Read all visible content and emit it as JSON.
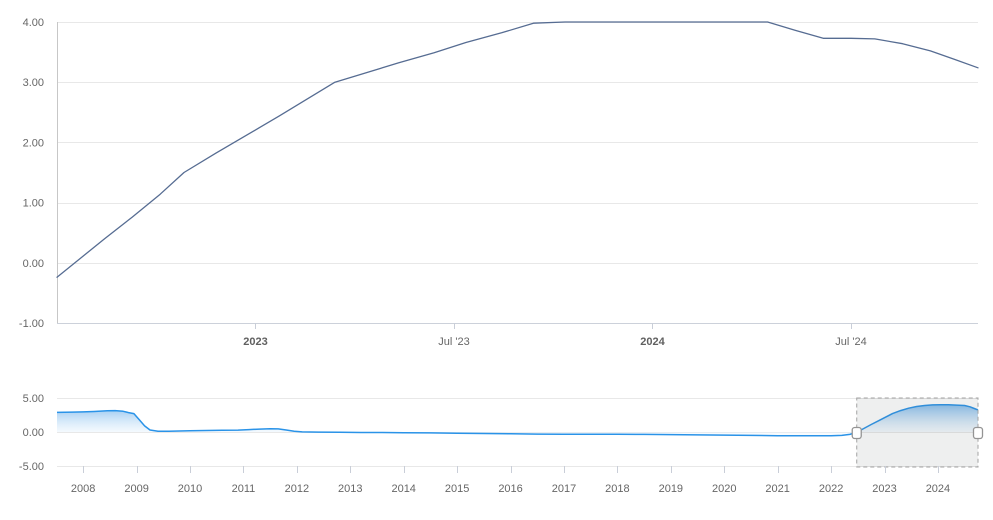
{
  "page": {
    "background": "#ffffff",
    "title": ""
  },
  "colors": {
    "grid": "#e8e8e8",
    "axis_line": "#ccd1da",
    "y_axis_line": "#c7c7c7",
    "tick_mark": "#c9ced8",
    "label": "#666666",
    "main_line": "#566c92",
    "nav_line": "#2a93e8",
    "nav_fill_top": "#7db9ed",
    "nav_fill_bottom": "#f3f9fe",
    "selection_fill": "rgba(100,105,112,0.11)",
    "selection_border": "#a3a3a3",
    "handle_fill": "#ffffff",
    "handle_border": "#949494"
  },
  "chart_data": [
    {
      "type": "line",
      "role": "main-zoomed-series",
      "title": "",
      "xlabel": "",
      "ylabel": "",
      "legend": "none",
      "grid": "horizontal-only",
      "xlim": [
        2022.5,
        2024.82
      ],
      "ylim": [
        -1,
        4
      ],
      "y_ticks": [
        {
          "v": 4,
          "label": "4.00"
        },
        {
          "v": 3,
          "label": "3.00"
        },
        {
          "v": 2,
          "label": "2.00"
        },
        {
          "v": 1,
          "label": "1.00"
        },
        {
          "v": 0,
          "label": "0.00"
        },
        {
          "v": -1,
          "label": "-1.00"
        }
      ],
      "x_ticks": [
        {
          "v": 2023.0,
          "label": "2023",
          "bold": true
        },
        {
          "v": 2023.5,
          "label": "Jul '23",
          "bold": false
        },
        {
          "v": 2024.0,
          "label": "2024",
          "bold": true
        },
        {
          "v": 2024.5,
          "label": "Jul '24",
          "bold": false
        }
      ],
      "points": [
        [
          2022.5,
          -0.24
        ],
        [
          2022.56,
          0.08
        ],
        [
          2022.62,
          0.4
        ],
        [
          2022.69,
          0.76
        ],
        [
          2022.76,
          1.14
        ],
        [
          2022.82,
          1.5
        ],
        [
          2022.9,
          1.82
        ],
        [
          2022.98,
          2.13
        ],
        [
          2023.06,
          2.44
        ],
        [
          2023.13,
          2.72
        ],
        [
          2023.2,
          3.0
        ],
        [
          2023.28,
          3.16
        ],
        [
          2023.36,
          3.32
        ],
        [
          2023.45,
          3.49
        ],
        [
          2023.53,
          3.66
        ],
        [
          2023.62,
          3.82
        ],
        [
          2023.7,
          3.98
        ],
        [
          2023.78,
          4.0
        ],
        [
          2023.87,
          4.0
        ],
        [
          2023.95,
          4.0
        ],
        [
          2024.04,
          4.0
        ],
        [
          2024.12,
          4.0
        ],
        [
          2024.21,
          4.0
        ],
        [
          2024.29,
          4.0
        ],
        [
          2024.36,
          3.86
        ],
        [
          2024.43,
          3.73
        ],
        [
          2024.5,
          3.73
        ],
        [
          2024.56,
          3.72
        ],
        [
          2024.63,
          3.64
        ],
        [
          2024.7,
          3.52
        ],
        [
          2024.76,
          3.38
        ],
        [
          2024.82,
          3.24
        ]
      ]
    },
    {
      "type": "area",
      "role": "navigator-series",
      "title": "",
      "xlabel": "",
      "ylabel": "",
      "legend": "none",
      "grid": "horizontal-only",
      "xlim": [
        2007.51,
        2024.75
      ],
      "ylim": [
        -5,
        5
      ],
      "y_ticks": [
        {
          "v": 5,
          "label": "5.00"
        },
        {
          "v": 0,
          "label": "0.00"
        },
        {
          "v": -5,
          "label": "-5.00"
        }
      ],
      "x_ticks": [
        {
          "v": 2008,
          "label": "2008"
        },
        {
          "v": 2009,
          "label": "2009"
        },
        {
          "v": 2010,
          "label": "2010"
        },
        {
          "v": 2011,
          "label": "2011"
        },
        {
          "v": 2012,
          "label": "2012"
        },
        {
          "v": 2013,
          "label": "2013"
        },
        {
          "v": 2014,
          "label": "2014"
        },
        {
          "v": 2015,
          "label": "2015"
        },
        {
          "v": 2016,
          "label": "2016"
        },
        {
          "v": 2017,
          "label": "2017"
        },
        {
          "v": 2018,
          "label": "2018"
        },
        {
          "v": 2019,
          "label": "2019"
        },
        {
          "v": 2020,
          "label": "2020"
        },
        {
          "v": 2021,
          "label": "2021"
        },
        {
          "v": 2022,
          "label": "2022"
        },
        {
          "v": 2023,
          "label": "2023"
        },
        {
          "v": 2024,
          "label": "2024"
        }
      ],
      "selection": {
        "from": 2022.48,
        "to": 2024.75
      },
      "points": [
        [
          2007.51,
          2.88
        ],
        [
          2007.8,
          2.92
        ],
        [
          2008.0,
          2.95
        ],
        [
          2008.2,
          3.02
        ],
        [
          2008.45,
          3.12
        ],
        [
          2008.6,
          3.15
        ],
        [
          2008.75,
          3.05
        ],
        [
          2008.85,
          2.85
        ],
        [
          2008.95,
          2.7
        ],
        [
          2009.05,
          1.8
        ],
        [
          2009.15,
          0.9
        ],
        [
          2009.25,
          0.3
        ],
        [
          2009.4,
          0.12
        ],
        [
          2009.6,
          0.12
        ],
        [
          2009.8,
          0.15
        ],
        [
          2010.0,
          0.18
        ],
        [
          2010.3,
          0.22
        ],
        [
          2010.6,
          0.25
        ],
        [
          2010.9,
          0.28
        ],
        [
          2011.1,
          0.35
        ],
        [
          2011.3,
          0.42
        ],
        [
          2011.5,
          0.48
        ],
        [
          2011.65,
          0.45
        ],
        [
          2011.8,
          0.3
        ],
        [
          2011.95,
          0.12
        ],
        [
          2012.1,
          0.02
        ],
        [
          2012.4,
          -0.02
        ],
        [
          2012.8,
          -0.05
        ],
        [
          2013.2,
          -0.07
        ],
        [
          2013.6,
          -0.08
        ],
        [
          2014.0,
          -0.1
        ],
        [
          2014.5,
          -0.13
        ],
        [
          2015.0,
          -0.17
        ],
        [
          2015.5,
          -0.22
        ],
        [
          2016.0,
          -0.27
        ],
        [
          2016.5,
          -0.31
        ],
        [
          2017.0,
          -0.33
        ],
        [
          2017.5,
          -0.33
        ],
        [
          2018.0,
          -0.33
        ],
        [
          2018.5,
          -0.35
        ],
        [
          2019.0,
          -0.38
        ],
        [
          2019.5,
          -0.42
        ],
        [
          2020.0,
          -0.45
        ],
        [
          2020.5,
          -0.5
        ],
        [
          2021.0,
          -0.54
        ],
        [
          2021.5,
          -0.56
        ],
        [
          2022.0,
          -0.55
        ],
        [
          2022.2,
          -0.5
        ],
        [
          2022.35,
          -0.35
        ],
        [
          2022.48,
          -0.05
        ],
        [
          2022.6,
          0.45
        ],
        [
          2022.75,
          1.1
        ],
        [
          2022.9,
          1.7
        ],
        [
          2023.0,
          2.1
        ],
        [
          2023.15,
          2.7
        ],
        [
          2023.3,
          3.15
        ],
        [
          2023.45,
          3.5
        ],
        [
          2023.6,
          3.75
        ],
        [
          2023.75,
          3.9
        ],
        [
          2023.9,
          3.98
        ],
        [
          2024.05,
          4.0
        ],
        [
          2024.2,
          4.0
        ],
        [
          2024.35,
          3.95
        ],
        [
          2024.5,
          3.9
        ],
        [
          2024.6,
          3.7
        ],
        [
          2024.68,
          3.45
        ],
        [
          2024.75,
          3.25
        ]
      ]
    }
  ]
}
